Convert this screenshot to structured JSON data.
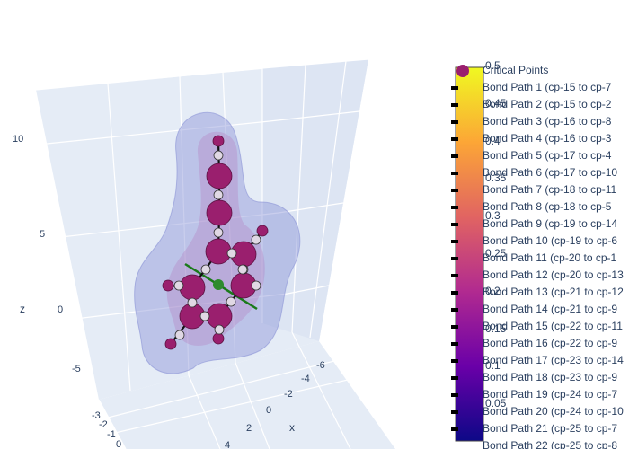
{
  "chart_data": {
    "type": "scatter3d",
    "title": "",
    "scene": {
      "zaxis": {
        "title": "z",
        "ticks": [
          "10",
          "5",
          "0",
          "-5"
        ]
      },
      "xaxis": {
        "title": "x",
        "ticks": [
          "-6",
          "-4",
          "-2",
          "0",
          "2",
          "4"
        ]
      },
      "yaxis": {
        "title": "",
        "ticks": [
          "-3",
          "-2",
          "-1",
          "0"
        ]
      },
      "background": "#e5ecf6",
      "grid": true
    },
    "surface": {
      "name": "electron density isosurface",
      "color": "#9aa0dd",
      "opacity": 0.5
    },
    "atoms": [
      {
        "id": 1,
        "color": "#9a1f6e",
        "size": "small"
      },
      {
        "id": 2,
        "color": "#9a1f6e",
        "size": "large"
      },
      {
        "id": 3,
        "color": "#9a1f6e",
        "size": "large"
      },
      {
        "id": 4,
        "color": "#9a1f6e",
        "size": "large"
      },
      {
        "id": 5,
        "color": "#9a1f6e",
        "size": "large"
      },
      {
        "id": 6,
        "color": "#9a1f6e",
        "size": "large"
      },
      {
        "id": 7,
        "color": "#9a1f6e",
        "size": "large"
      },
      {
        "id": 8,
        "color": "#9a1f6e",
        "size": "large"
      },
      {
        "id": 9,
        "color": "#9a1f6e",
        "size": "small"
      },
      {
        "id": 10,
        "color": "#9a1f6e",
        "size": "small"
      },
      {
        "id": 11,
        "color": "#9a1f6e",
        "size": "small"
      },
      {
        "id": 12,
        "color": "#9a1f6e",
        "size": "small"
      },
      {
        "id": 13,
        "color": "#9a1f6e",
        "size": "small"
      }
    ],
    "critical_points_color": "#e0d8e4",
    "axis_line_color": "#1a7a1a",
    "colorbar": {
      "colorscale": [
        "#0d0887",
        "#6a00a8",
        "#b12a90",
        "#e16462",
        "#fca636",
        "#f0f921"
      ],
      "min": 0,
      "max": 0.5,
      "ticks": [
        "0.5",
        "0.45",
        "0.4",
        "0.35",
        "0.3",
        "0.25",
        "0.2",
        "0.15",
        "0.1",
        "0.05"
      ]
    },
    "legend": {
      "placement": "right",
      "entries": [
        "Critical Points",
        "Bond Path 1 (cp-15 to cp-7",
        "Bond Path 2 (cp-15 to cp-2",
        "Bond Path 3 (cp-16 to cp-8",
        "Bond Path 4 (cp-16 to cp-3",
        "Bond Path 5 (cp-17 to cp-4",
        "Bond Path 6 (cp-17 to cp-10",
        "Bond Path 7 (cp-18 to cp-11",
        "Bond Path 8 (cp-18 to cp-5",
        "Bond Path 9 (cp-19 to cp-14",
        "Bond Path 10 (cp-19 to cp-6",
        "Bond Path 11 (cp-20 to cp-1",
        "Bond Path 12 (cp-20 to cp-13",
        "Bond Path 13 (cp-21 to cp-12",
        "Bond Path 14 (cp-21 to cp-9",
        "Bond Path 15 (cp-22 to cp-11",
        "Bond Path 16 (cp-22 to cp-9",
        "Bond Path 17 (cp-23 to cp-14",
        "Bond Path 18 (cp-23 to cp-9",
        "Bond Path 19 (cp-24 to cp-7",
        "Bond Path 20 (cp-24 to cp-10",
        "Bond Path 21 (cp-25 to cp-7",
        "Bond Path 22 (cp-25 to cp-8"
      ]
    }
  }
}
